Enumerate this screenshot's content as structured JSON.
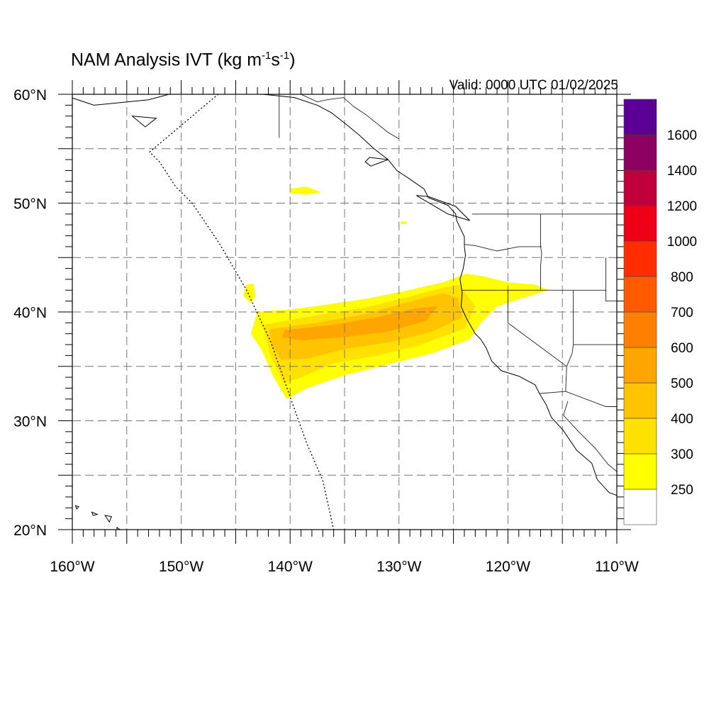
{
  "title": {
    "main": "NAM Analysis IVT (kg m",
    "sup1": "-1",
    "mid": "s",
    "sup2": "-1",
    "end": ")"
  },
  "valid_label": "Valid: 0000 UTC 01/02/2025",
  "map": {
    "lon_range": [
      -160,
      -110
    ],
    "lat_range": [
      20,
      60
    ],
    "gridlines": "dashed, every 5 degrees",
    "lon_labels": [
      {
        "lon": -160,
        "text": "160°W"
      },
      {
        "lon": -150,
        "text": "150°W"
      },
      {
        "lon": -140,
        "text": "140°W"
      },
      {
        "lon": -130,
        "text": "130°W"
      },
      {
        "lon": -120,
        "text": "120°W"
      },
      {
        "lon": -110,
        "text": "110°W"
      }
    ],
    "lat_labels": [
      {
        "lat": 60,
        "text": "60°N"
      },
      {
        "lat": 50,
        "text": "50°N"
      },
      {
        "lat": 40,
        "text": "40°N"
      },
      {
        "lat": 30,
        "text": "30°N"
      },
      {
        "lat": 20,
        "text": "20°N"
      }
    ]
  },
  "colorbar": {
    "colors": [
      "#ffffff",
      "#ffff00",
      "#ffe100",
      "#ffc300",
      "#ffa500",
      "#ff7f00",
      "#ff5a00",
      "#ff2d00",
      "#ee0016",
      "#c0003a",
      "#8b0060",
      "#5b0096"
    ],
    "labels": [
      "250",
      "300",
      "400",
      "500",
      "600",
      "700",
      "800",
      "1000",
      "1200",
      "1400",
      "1600"
    ]
  },
  "ivt_features": [
    {
      "level": 250,
      "color": "#ffff00",
      "outline": [
        [
          -143.0,
          40.0
        ],
        [
          -140.0,
          40.2
        ],
        [
          -137.0,
          40.6
        ],
        [
          -133.0,
          41.2
        ],
        [
          -129.0,
          42.0
        ],
        [
          -126.0,
          42.7
        ],
        [
          -123.8,
          43.5
        ],
        [
          -122.0,
          43.2
        ],
        [
          -120.0,
          42.7
        ],
        [
          -117.5,
          42.5
        ],
        [
          -116.3,
          42.0
        ],
        [
          -119.0,
          41.2
        ],
        [
          -121.0,
          40.5
        ],
        [
          -122.5,
          39.0
        ],
        [
          -123.5,
          37.5
        ],
        [
          -127.0,
          36.2
        ],
        [
          -131.0,
          35.2
        ],
        [
          -135.0,
          34.2
        ],
        [
          -138.5,
          33.0
        ],
        [
          -140.3,
          32.0
        ],
        [
          -141.5,
          34.0
        ],
        [
          -142.6,
          36.5
        ],
        [
          -143.6,
          38.0
        ]
      ]
    },
    {
      "level": 250,
      "color": "#ffff00",
      "outline": [
        [
          -144.0,
          42.5
        ],
        [
          -143.4,
          42.6
        ],
        [
          -143.2,
          41.5
        ],
        [
          -143.6,
          40.8
        ],
        [
          -144.3,
          41.5
        ]
      ]
    },
    {
      "level": 250,
      "color": "#ffff00",
      "outline": [
        [
          -140.0,
          51.3
        ],
        [
          -138.5,
          51.5
        ],
        [
          -137.2,
          51.0
        ],
        [
          -138.5,
          50.8
        ],
        [
          -140.0,
          50.9
        ]
      ]
    },
    {
      "level": 250,
      "color": "#ffff00",
      "outline": [
        [
          -129.8,
          48.3
        ],
        [
          -129.3,
          48.3
        ],
        [
          -129.3,
          48.1
        ],
        [
          -129.8,
          48.1
        ]
      ]
    },
    {
      "level": 300,
      "color": "#ffe100",
      "outline": [
        [
          -142.5,
          38.8
        ],
        [
          -138.0,
          39.6
        ],
        [
          -133.0,
          40.4
        ],
        [
          -129.0,
          41.4
        ],
        [
          -126.0,
          42.2
        ],
        [
          -124.5,
          42.5
        ],
        [
          -123.0,
          40.5
        ],
        [
          -124.0,
          38.5
        ],
        [
          -128.0,
          37.0
        ],
        [
          -132.0,
          36.0
        ],
        [
          -136.0,
          35.3
        ],
        [
          -139.0,
          34.0
        ],
        [
          -140.6,
          33.5
        ],
        [
          -141.8,
          36.0
        ]
      ]
    },
    {
      "level": 400,
      "color": "#ffc300",
      "outline": [
        [
          -141.9,
          38.4
        ],
        [
          -137.5,
          39.0
        ],
        [
          -133.0,
          39.8
        ],
        [
          -129.5,
          40.8
        ],
        [
          -126.0,
          41.7
        ],
        [
          -124.6,
          41.3
        ],
        [
          -124.2,
          39.5
        ],
        [
          -127.0,
          38.2
        ],
        [
          -131.0,
          37.2
        ],
        [
          -135.0,
          36.6
        ],
        [
          -138.5,
          35.7
        ],
        [
          -140.8,
          35.6
        ],
        [
          -141.6,
          36.8
        ]
      ]
    },
    {
      "level": 500,
      "color": "#ffa500",
      "outline": [
        [
          -140.5,
          38.3
        ],
        [
          -136.0,
          38.8
        ],
        [
          -132.0,
          39.5
        ],
        [
          -128.5,
          40.3
        ],
        [
          -126.5,
          40.5
        ],
        [
          -127.5,
          39.2
        ],
        [
          -131.0,
          38.2
        ],
        [
          -135.0,
          37.7
        ],
        [
          -139.0,
          37.4
        ],
        [
          -140.7,
          37.7
        ]
      ]
    }
  ],
  "boundaries": {
    "coast": [
      [
        -168,
        66
      ],
      [
        -164,
        61
      ],
      [
        -158,
        59
      ],
      [
        -153,
        59.5
      ],
      [
        -150,
        60.3
      ],
      [
        -146,
        60.7
      ],
      [
        -142.5,
        60.0
      ],
      [
        -139.6,
        59.7
      ],
      [
        -137.5,
        59.0
      ],
      [
        -136.2,
        58.3
      ],
      [
        -134.8,
        57.2
      ],
      [
        -133.6,
        56.2
      ],
      [
        -132.3,
        55.0
      ],
      [
        -131.0,
        54.0
      ],
      [
        -130.2,
        53.0
      ],
      [
        -129.0,
        52.2
      ],
      [
        -127.7,
        51.3
      ],
      [
        -127.3,
        50.5
      ],
      [
        -125.5,
        49.8
      ],
      [
        -124.8,
        49.0
      ],
      [
        -124.7,
        48.4
      ],
      [
        -124.0,
        46.9
      ],
      [
        -124.0,
        46.0
      ],
      [
        -123.9,
        45.2
      ],
      [
        -124.1,
        44.0
      ],
      [
        -124.4,
        43.0
      ],
      [
        -124.2,
        41.8
      ],
      [
        -124.3,
        40.5
      ],
      [
        -123.8,
        39.4
      ],
      [
        -123.0,
        38.0
      ],
      [
        -122.5,
        37.5
      ],
      [
        -122.0,
        36.7
      ],
      [
        -121.5,
        35.5
      ],
      [
        -120.6,
        34.6
      ],
      [
        -119.0,
        34.1
      ],
      [
        -117.5,
        33.3
      ],
      [
        -117.1,
        32.5
      ],
      [
        -116.5,
        31.5
      ],
      [
        -116.0,
        30.3
      ],
      [
        -114.9,
        29.1
      ],
      [
        -113.7,
        27.3
      ],
      [
        -112.3,
        26.1
      ],
      [
        -111.8,
        24.6
      ],
      [
        -110.7,
        23.4
      ],
      [
        -109.6,
        23.0
      ]
    ],
    "islands": [
      [
        [
          -131.0,
          54.0
        ],
        [
          -132.6,
          53.4
        ],
        [
          -133.1,
          53.8
        ],
        [
          -132.7,
          54.2
        ]
      ],
      [
        [
          -125.5,
          49.0
        ],
        [
          -128.4,
          50.7
        ],
        [
          -127.3,
          50.6
        ],
        [
          -124.8,
          49.7
        ],
        [
          -123.5,
          48.4
        ]
      ],
      [
        [
          -155.9,
          20.2
        ],
        [
          -155.1,
          19.6
        ],
        [
          -155.3,
          19.0
        ],
        [
          -155.9,
          19.4
        ]
      ],
      [
        [
          -157.0,
          21.3
        ],
        [
          -156.4,
          21.2
        ],
        [
          -156.6,
          20.7
        ]
      ],
      [
        [
          -158.2,
          21.6
        ],
        [
          -157.7,
          21.4
        ],
        [
          -158.1,
          21.3
        ]
      ],
      [
        [
          -159.7,
          22.2
        ],
        [
          -159.4,
          22.1
        ],
        [
          -159.6,
          21.9
        ]
      ],
      [
        [
          -154.5,
          58.0
        ],
        [
          -152.3,
          57.8
        ],
        [
          -153.3,
          57.0
        ]
      ]
    ],
    "borders": [
      [
        [
          -141.0,
          60.0
        ],
        [
          -141.0,
          56.0
        ]
      ],
      [
        [
          -139.0,
          60.0
        ],
        [
          -137.5,
          59.3
        ],
        [
          -136.6,
          59.5
        ],
        [
          -135.1,
          59.7
        ],
        [
          -134.2,
          58.9
        ],
        [
          -133.0,
          58.1
        ],
        [
          -131.0,
          56.5
        ],
        [
          -130.0,
          55.9
        ]
      ],
      [
        [
          -123.3,
          49.0
        ],
        [
          -110.0,
          49.0
        ]
      ],
      [
        [
          -124.0,
          46.2
        ],
        [
          -123.0,
          46.1
        ],
        [
          -121.0,
          45.6
        ],
        [
          -119.0,
          46.0
        ],
        [
          -116.9,
          46.0
        ]
      ],
      [
        [
          -124.2,
          42.0
        ],
        [
          -111.0,
          42.0
        ]
      ],
      [
        [
          -117.0,
          49.0
        ],
        [
          -117.0,
          46.0
        ],
        [
          -116.9,
          45.4
        ],
        [
          -117.0,
          44.2
        ],
        [
          -117.0,
          42.0
        ]
      ],
      [
        [
          -120.0,
          42.0
        ],
        [
          -120.0,
          39.0
        ],
        [
          -114.6,
          35.0
        ]
      ],
      [
        [
          -114.0,
          42.0
        ],
        [
          -114.0,
          37.0
        ],
        [
          -114.1,
          36.2
        ],
        [
          -114.6,
          35.0
        ]
      ],
      [
        [
          -114.0,
          37.0
        ],
        [
          -110.0,
          37.0
        ]
      ],
      [
        [
          -111.0,
          45.0
        ],
        [
          -111.0,
          41.0
        ],
        [
          -110.0,
          41.0
        ]
      ],
      [
        [
          -117.1,
          32.5
        ],
        [
          -114.7,
          32.7
        ],
        [
          -111.0,
          31.3
        ],
        [
          -110.0,
          31.3
        ]
      ],
      [
        [
          -114.6,
          35.0
        ],
        [
          -114.7,
          32.7
        ]
      ],
      [
        [
          -114.5,
          31.8
        ],
        [
          -114.9,
          30.5
        ],
        [
          -113.5,
          29.0
        ],
        [
          -112.0,
          27.5
        ],
        [
          -110.8,
          26.0
        ],
        [
          -109.6,
          25.0
        ]
      ]
    ],
    "domain_edge": [
      [
        -144.6,
        61.7
      ],
      [
        -152.9,
        54.7
      ],
      [
        -152.0,
        53.8
      ],
      [
        -150.5,
        51.5
      ],
      [
        -149.0,
        50.0
      ],
      [
        -146.5,
        46.3
      ],
      [
        -144.0,
        42.0
      ],
      [
        -141.8,
        37.3
      ],
      [
        -140.0,
        32.2
      ],
      [
        -138.5,
        28.0
      ],
      [
        -137.0,
        24.5
      ],
      [
        -136.0,
        20.0
      ]
    ]
  }
}
